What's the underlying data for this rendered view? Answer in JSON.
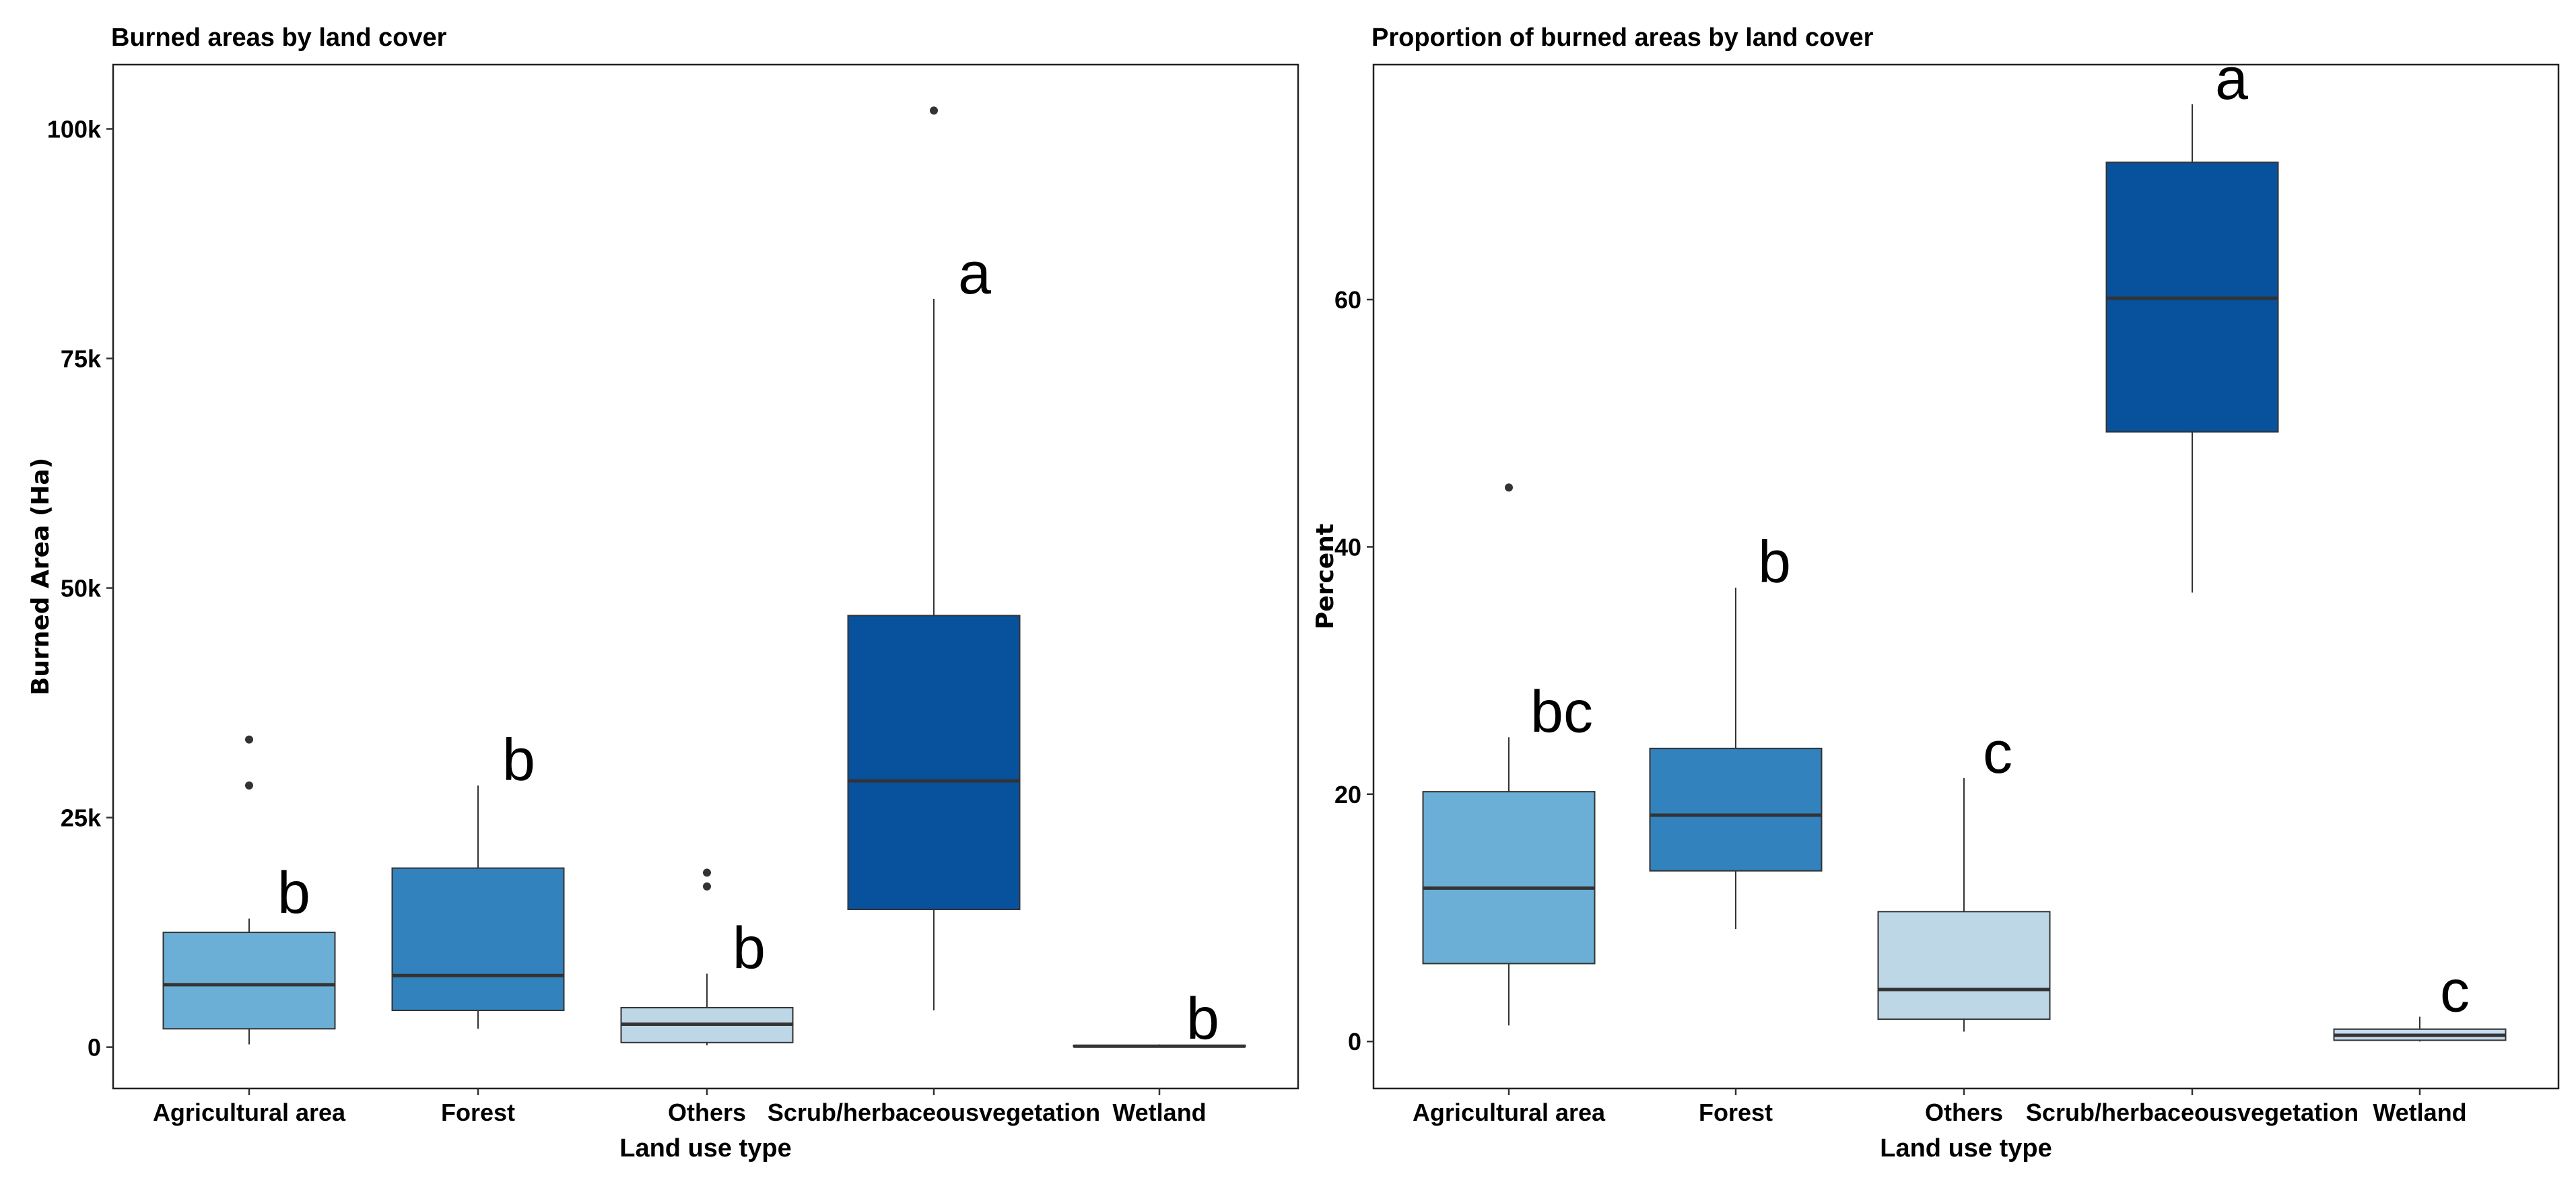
{
  "chart_data": [
    {
      "type": "boxplot",
      "title": "Burned areas by land cover",
      "xlabel": "Land use type",
      "ylabel": "Burned Area (Ha)",
      "ylim": [
        -4500,
        107000
      ],
      "yticks": [
        0,
        25000,
        50000,
        75000,
        100000
      ],
      "ytick_labels": [
        "0",
        "25k",
        "50k",
        "75k",
        "100k"
      ],
      "categories": [
        {
          "name": "Agricultural area",
          "color": "#6baed6",
          "whisker_low": 300,
          "q1": 2000,
          "median": 6800,
          "q3": 12500,
          "whisker_high": 14000,
          "outliers": [
            28500,
            33500
          ],
          "letter": "b"
        },
        {
          "name": "Forest",
          "color": "#3182bd",
          "whisker_low": 2000,
          "q1": 4000,
          "median": 7800,
          "q3": 19500,
          "whisker_high": 28500,
          "outliers": [],
          "letter": "b"
        },
        {
          "name": "Others",
          "color": "#bdd7e7",
          "whisker_low": 200,
          "q1": 500,
          "median": 2500,
          "q3": 4300,
          "whisker_high": 8000,
          "outliers": [
            17500,
            19000
          ],
          "letter": "b"
        },
        {
          "name": "Scrub/herbaceousvegetation",
          "color": "#08519c",
          "whisker_low": 4000,
          "q1": 15000,
          "median": 29000,
          "q3": 47000,
          "whisker_high": 81500,
          "outliers": [
            102000
          ],
          "letter": "a"
        },
        {
          "name": "Wetland",
          "color": "#c6dbef",
          "whisker_low": 0,
          "q1": 50,
          "median": 100,
          "q3": 200,
          "whisker_high": 300,
          "outliers": [],
          "letter": "b"
        }
      ]
    },
    {
      "type": "boxplot",
      "title": "Proportion of burned areas by land cover",
      "xlabel": "Land use type",
      "ylabel": "Percent",
      "ylim": [
        -3.8,
        79
      ],
      "yticks": [
        0,
        20,
        40,
        60
      ],
      "ytick_labels": [
        "0",
        "20",
        "40",
        "60"
      ],
      "categories": [
        {
          "name": "Agricultural area",
          "color": "#6baed6",
          "whisker_low": 1.3,
          "q1": 6.3,
          "median": 12.4,
          "q3": 20.2,
          "whisker_high": 24.6,
          "outliers": [
            44.8
          ],
          "letter": "bc"
        },
        {
          "name": "Forest",
          "color": "#3182bd",
          "whisker_low": 9.1,
          "q1": 13.8,
          "median": 18.3,
          "q3": 23.7,
          "whisker_high": 36.7,
          "outliers": [],
          "letter": "b"
        },
        {
          "name": "Others",
          "color": "#bdd7e7",
          "whisker_low": 0.8,
          "q1": 1.8,
          "median": 4.2,
          "q3": 10.5,
          "whisker_high": 21.3,
          "outliers": [],
          "letter": "c"
        },
        {
          "name": "Scrub/herbaceousvegetation",
          "color": "#08519c",
          "whisker_low": 36.3,
          "q1": 49.3,
          "median": 60.1,
          "q3": 71.1,
          "whisker_high": 75.8,
          "outliers": [],
          "letter": "a"
        },
        {
          "name": "Wetland",
          "color": "#c6dbef",
          "whisker_low": 0,
          "q1": 0.1,
          "median": 0.5,
          "q3": 1.0,
          "whisker_high": 2.0,
          "outliers": [],
          "letter": "c"
        }
      ]
    }
  ]
}
